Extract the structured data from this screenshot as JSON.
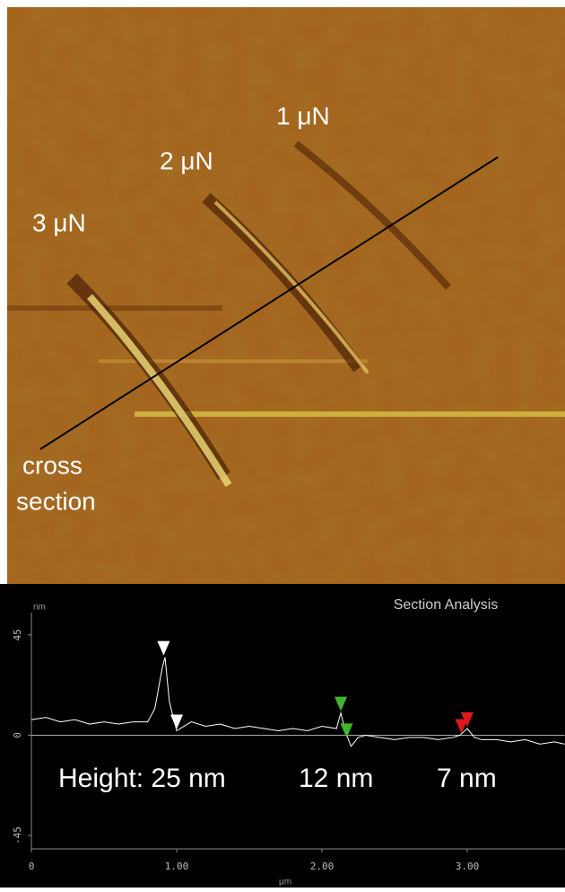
{
  "image": {
    "labels": [
      "1 μN",
      "2 μN",
      "3 μN"
    ],
    "note": [
      "cross",
      "section"
    ]
  },
  "chart_data": {
    "type": "line",
    "title": "Section Analysis",
    "y_unit": "nm",
    "x_label": "μm",
    "x": [
      0,
      0.1,
      0.2,
      0.3,
      0.4,
      0.5,
      0.6,
      0.7,
      0.8,
      0.85,
      0.9,
      0.92,
      0.95,
      1.0,
      1.05,
      1.1,
      1.2,
      1.3,
      1.4,
      1.5,
      1.6,
      1.7,
      1.8,
      1.9,
      2.0,
      2.1,
      2.13,
      2.16,
      2.2,
      2.25,
      2.3,
      2.4,
      2.5,
      2.6,
      2.7,
      2.8,
      2.9,
      2.95,
      3.0,
      3.05,
      3.1,
      3.2,
      3.3,
      3.4,
      3.5,
      3.6,
      3.67
    ],
    "series": [
      {
        "color": "#ffffff",
        "values": [
          7,
          8,
          6,
          7,
          5,
          6,
          5,
          6,
          6,
          12,
          30,
          35,
          15,
          2,
          4,
          6,
          4,
          5,
          3,
          4,
          3,
          2,
          3,
          2,
          4,
          3,
          10,
          2,
          -5,
          -1,
          0,
          -1,
          -2,
          -1,
          -1,
          -2,
          -1,
          0,
          3,
          -1,
          -2,
          -2,
          -3,
          -2,
          -4,
          -3,
          -4
        ]
      }
    ],
    "markers": [
      {
        "color": "#ffffff",
        "x": [
          0.91,
          1.0
        ],
        "y": [
          35,
          2
        ]
      },
      {
        "color": "#3db82e",
        "x": [
          2.13,
          2.17
        ],
        "y": [
          10,
          -2
        ]
      },
      {
        "color": "#e01818",
        "x": [
          2.96,
          3.0
        ],
        "y": [
          0,
          3
        ]
      }
    ],
    "annotations": [
      "Height: 25 nm",
      "12 nm",
      "7 nm"
    ],
    "xlim": [
      0,
      3.67
    ],
    "ylim": [
      -51,
      55
    ],
    "xticks": [
      0,
      {
        "value": 1,
        "label": "1.00"
      },
      {
        "value": 2,
        "label": "2.00"
      },
      {
        "value": 3,
        "label": "3.00"
      }
    ],
    "yticks": [
      -45,
      0,
      45
    ]
  }
}
